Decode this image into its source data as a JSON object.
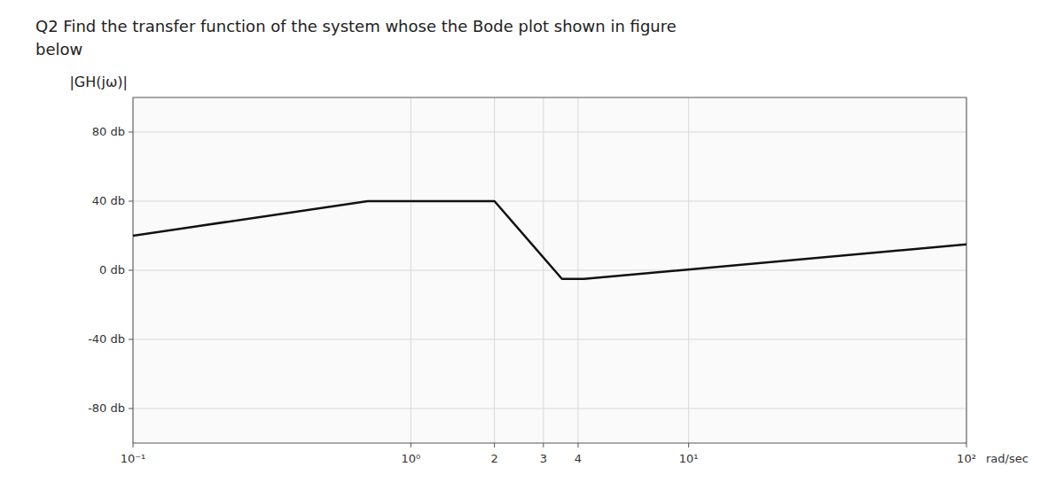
{
  "chart_data": {
    "type": "line",
    "title": "Q2  Find the transfer function of the system   whose the Bode plot shown in figure",
    "subtitle": "below",
    "xlabel": "rad/sec",
    "ylabel": "|GH(jω)|",
    "log": "x",
    "grid": true,
    "x": [
      0.1,
      0.7,
      2.0,
      3.5,
      4.2,
      100.0
    ],
    "values": [
      20,
      40,
      40,
      -5,
      -5,
      15
    ],
    "color": "#111111",
    "xlim": [
      0.1,
      100
    ],
    "xticks": [
      {
        "value": 0.1,
        "label": "10⁻¹"
      },
      {
        "value": 1,
        "label": "10⁰"
      },
      2,
      3,
      4,
      {
        "value": 10,
        "label": "10¹"
      },
      {
        "value": 100,
        "label": "10²"
      }
    ],
    "ylim": [
      -100,
      100
    ],
    "yticks": [
      {
        "value": 80,
        "label": "80 db"
      },
      {
        "value": 40,
        "label": "40 db"
      },
      {
        "value": 0,
        "label": "0 db"
      },
      {
        "value": -40,
        "label": "-40 db"
      },
      {
        "value": -80,
        "label": "-80 db"
      }
    ]
  }
}
